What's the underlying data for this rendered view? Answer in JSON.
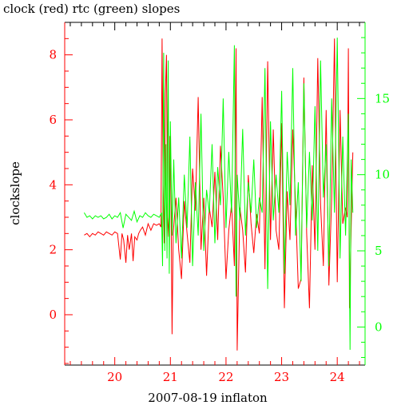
{
  "chart_data": {
    "type": "line",
    "title": "clock (red) rtc (green) slopes",
    "xlabel": "2007-08-19 inflaton",
    "ylabel": "clockslope",
    "y2label": "",
    "xlim": [
      19.1,
      24.5
    ],
    "ylim": [
      -1.55,
      9.0
    ],
    "y2lim": [
      -2.5,
      20.0
    ],
    "x_ticks": [
      "20",
      "21",
      "22",
      "23",
      "24"
    ],
    "y_ticks": [
      "0",
      "2",
      "4",
      "6",
      "8"
    ],
    "y2_ticks": [
      "0",
      "5",
      "10",
      "15"
    ],
    "grid": false,
    "colors": {
      "clock": "#ff0000",
      "rtc": "#00ff00",
      "clock_dark": "#cc0000",
      "axis": "#000000"
    },
    "series": [
      {
        "axis": "left",
        "color": "#ff0000",
        "x": [
          19.45,
          19.5,
          19.55,
          19.6,
          19.65,
          19.7,
          19.75,
          19.8,
          19.85,
          19.9,
          19.95,
          20.0,
          20.05,
          20.1,
          20.13,
          20.16,
          20.2,
          20.23,
          20.26,
          20.3,
          20.33,
          20.36,
          20.4,
          20.43,
          20.46,
          20.5,
          20.55,
          20.6,
          20.65,
          20.7,
          20.75,
          20.8,
          20.83,
          20.85,
          20.87,
          20.89,
          20.91,
          20.93,
          20.95,
          20.97,
          20.99,
          21.01,
          21.03,
          21.05,
          21.1,
          21.15,
          21.2,
          21.25,
          21.3,
          21.35,
          21.4,
          21.45,
          21.5,
          21.55,
          21.6,
          21.65,
          21.7,
          21.75,
          21.8,
          21.85,
          21.9,
          21.95,
          22.0,
          22.05,
          22.1,
          22.15,
          22.18,
          22.2,
          22.25,
          22.3,
          22.35,
          22.4,
          22.45,
          22.5,
          22.55,
          22.6,
          22.65,
          22.7,
          22.75,
          22.8,
          22.85,
          22.9,
          22.95,
          23.0,
          23.05,
          23.1,
          23.15,
          23.2,
          23.25,
          23.3,
          23.35,
          23.4,
          23.45,
          23.5,
          23.55,
          23.6,
          23.65,
          23.7,
          23.75,
          23.8,
          23.85,
          23.9,
          23.95,
          24.0,
          24.05,
          24.1,
          24.15,
          24.18,
          24.2,
          24.22,
          24.25,
          24.28
        ],
        "y": [
          2.45,
          2.5,
          2.4,
          2.5,
          2.45,
          2.55,
          2.5,
          2.45,
          2.55,
          2.5,
          2.45,
          2.55,
          2.5,
          1.7,
          2.5,
          2.3,
          1.6,
          2.45,
          2.0,
          2.5,
          1.65,
          2.4,
          2.3,
          2.5,
          2.6,
          2.7,
          2.45,
          2.8,
          2.6,
          2.8,
          2.75,
          2.8,
          2.7,
          8.5,
          4.0,
          2.2,
          6.8,
          8.0,
          3.0,
          2.4,
          5.5,
          3.8,
          -0.6,
          2.5,
          3.6,
          2.0,
          1.1,
          3.5,
          2.5,
          1.6,
          4.5,
          3.2,
          6.7,
          2.0,
          3.6,
          1.2,
          3.3,
          2.7,
          4.4,
          2.3,
          5.2,
          3.6,
          1.1,
          2.6,
          3.4,
          1.5,
          8.2,
          -1.1,
          3.3,
          2.6,
          1.3,
          4.3,
          2.8,
          1.9,
          3.1,
          2.5,
          6.7,
          1.4,
          7.8,
          2.3,
          5.7,
          2.6,
          2.0,
          5.9,
          0.2,
          3.8,
          2.3,
          5.7,
          3.4,
          0.8,
          1.1,
          7.3,
          2.5,
          0.2,
          4.6,
          2.0,
          7.9,
          3.4,
          1.5,
          6.3,
          0.9,
          3.6,
          8.5,
          1.0,
          6.3,
          2.8,
          3.3,
          3.0,
          8.2,
          0.2,
          2.7,
          5.0
        ]
      },
      {
        "axis": "right",
        "color": "#00ff00",
        "x": [
          19.45,
          19.5,
          19.55,
          19.6,
          19.65,
          19.7,
          19.75,
          19.8,
          19.85,
          19.9,
          19.95,
          20.0,
          20.05,
          20.1,
          20.15,
          20.2,
          20.25,
          20.3,
          20.35,
          20.4,
          20.45,
          20.5,
          20.55,
          20.6,
          20.65,
          20.7,
          20.75,
          20.8,
          20.84,
          20.86,
          20.88,
          20.9,
          20.92,
          20.94,
          20.96,
          20.98,
          21.0,
          21.03,
          21.06,
          21.1,
          21.15,
          21.2,
          21.25,
          21.3,
          21.35,
          21.4,
          21.45,
          21.5,
          21.55,
          21.6,
          21.65,
          21.7,
          21.75,
          21.8,
          21.85,
          21.9,
          21.95,
          22.0,
          22.05,
          22.1,
          22.15,
          22.18,
          22.2,
          22.25,
          22.3,
          22.35,
          22.4,
          22.45,
          22.5,
          22.55,
          22.6,
          22.65,
          22.7,
          22.75,
          22.8,
          22.85,
          22.9,
          22.95,
          23.0,
          23.05,
          23.1,
          23.15,
          23.2,
          23.25,
          23.3,
          23.35,
          23.4,
          23.45,
          23.5,
          23.55,
          23.6,
          23.65,
          23.7,
          23.75,
          23.8,
          23.85,
          23.9,
          23.95,
          24.0,
          24.05,
          24.1,
          24.15,
          24.2,
          24.23,
          24.25,
          24.28
        ],
        "y": [
          7.5,
          7.2,
          7.3,
          7.1,
          7.3,
          7.2,
          7.3,
          7.1,
          7.2,
          7.4,
          7.1,
          7.3,
          7.2,
          7.5,
          6.5,
          7.4,
          7.2,
          7.0,
          7.6,
          6.9,
          7.3,
          7.2,
          7.5,
          7.3,
          7.2,
          7.4,
          7.3,
          7.2,
          7.5,
          4.0,
          18.0,
          5.0,
          12.0,
          4.5,
          17.5,
          3.5,
          13.5,
          6.0,
          11.0,
          5.5,
          8.5,
          4.5,
          10.0,
          6.5,
          12.5,
          4.0,
          9.5,
          6.0,
          14.0,
          5.0,
          9.0,
          7.5,
          12.0,
          5.5,
          10.5,
          8.0,
          15.0,
          6.5,
          11.5,
          7.5,
          18.5,
          2.0,
          10.0,
          7.0,
          13.0,
          6.0,
          9.5,
          7.5,
          11.0,
          6.5,
          8.5,
          7.5,
          17.0,
          2.5,
          13.5,
          7.0,
          10.0,
          7.5,
          15.5,
          3.5,
          11.5,
          8.0,
          17.0,
          6.0,
          9.5,
          3.0,
          16.0,
          6.5,
          11.5,
          7.0,
          14.5,
          5.0,
          17.5,
          8.5,
          12.0,
          4.0,
          15.0,
          7.5,
          19.0,
          4.5,
          12.5,
          6.0,
          14.0,
          -1.5,
          11.0,
          7.5
        ]
      }
    ]
  }
}
